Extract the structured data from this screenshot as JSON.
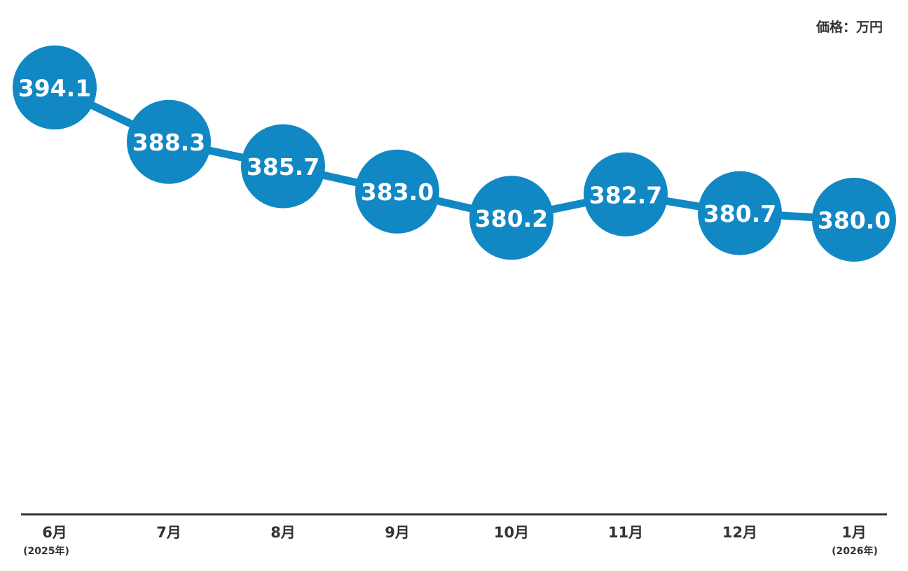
{
  "unit_label": "価格：万円",
  "colors": {
    "marker": "#1188c4",
    "line": "#1188c4",
    "axis": "#333333",
    "text": "#333333",
    "label_text": "#ffffff"
  },
  "chart_data": {
    "type": "line",
    "title": "",
    "xlabel": "",
    "ylabel": "価格：万円",
    "categories": [
      "6月",
      "7月",
      "8月",
      "9月",
      "10月",
      "11月",
      "12月",
      "1月"
    ],
    "year_labels": [
      "(2025年)",
      "",
      "",
      "",
      "",
      "",
      "",
      "(2026年)"
    ],
    "series": [
      {
        "values": [
          394.1,
          388.3,
          385.7,
          383.0,
          380.2,
          382.7,
          380.7,
          380.0
        ]
      }
    ],
    "value_labels": [
      "394.1",
      "388.3",
      "385.7",
      "383.0",
      "380.2",
      "382.7",
      "380.7",
      "380.0"
    ],
    "grid": false,
    "legend": "none"
  }
}
